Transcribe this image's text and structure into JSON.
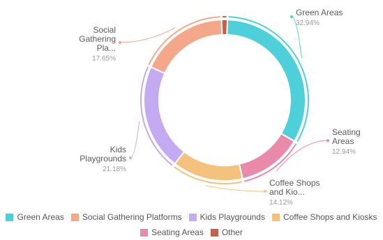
{
  "chart_data": {
    "type": "pie",
    "variant": "donut",
    "title": "",
    "legend_position": "bottom",
    "slices": [
      {
        "name": "Green Areas",
        "value": 32.94,
        "color": "#4dd0d9",
        "label_lines": [
          "Green Areas"
        ],
        "percent_text": "32.94%"
      },
      {
        "name": "Seating Areas",
        "value": 12.94,
        "color": "#e98aaa",
        "label_lines": [
          "Seating",
          "Areas"
        ],
        "percent_text": "12.94%"
      },
      {
        "name": "Coffee Shops and Kiosks",
        "value": 14.12,
        "color": "#f5c27e",
        "label_lines": [
          "Coffee Shops",
          "and Kio..."
        ],
        "percent_text": "14.12%"
      },
      {
        "name": "Kids Playgrounds",
        "value": 21.18,
        "color": "#c4aaf0",
        "label_lines": [
          "Kids",
          "Playgrounds"
        ],
        "percent_text": "21.18%"
      },
      {
        "name": "Social Gathering Platforms",
        "value": 17.65,
        "color": "#f5a78a",
        "label_lines": [
          "Social",
          "Gathering",
          "Pla..."
        ],
        "percent_text": "17.65%"
      },
      {
        "name": "Other",
        "value": 1.17,
        "color": "#c4604c",
        "label_lines": [],
        "percent_text": ""
      }
    ]
  },
  "legend": {
    "row1": [
      {
        "name": "Green Areas",
        "color": "#4dd0d9"
      },
      {
        "name": "Social Gathering Platforms",
        "color": "#f5a78a"
      },
      {
        "name": "Kids Playgrounds",
        "color": "#c4aaf0"
      },
      {
        "name": "Coffee Shops and Kiosks",
        "color": "#f5c27e"
      }
    ],
    "row2": [
      {
        "name": "Seating Areas",
        "color": "#e98aaa"
      },
      {
        "name": "Other",
        "color": "#c4604c"
      }
    ]
  }
}
